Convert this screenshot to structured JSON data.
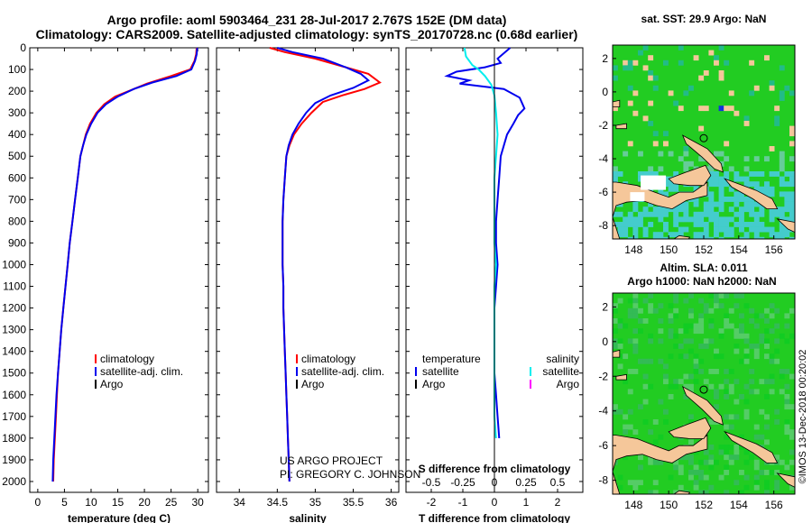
{
  "header": {
    "title_line1": "Argo profile: aoml 5903464_231 28-Jul-2017 2.767S 152E (DM data)",
    "title_line2": "Climatology: CARS2009. Satellite-adjusted climatology: synTS_20170728.nc (0.68d earlier)"
  },
  "colors": {
    "climatology": "#ff0000",
    "satellite": "#0000ee",
    "argo": "#000000",
    "sal_satellite": "#00eeee",
    "sal_argo": "#ff00ff",
    "land": "#f5c79a",
    "ocean_warm": "#22cc22",
    "ocean_cool": "#44cccc"
  },
  "credits": {
    "project": "US ARGO PROJECT",
    "pi": "PI: GREGORY C. JOHNSON",
    "stamp": "©IMOS 13-Dec-2018 00:20:02"
  },
  "chart_data": [
    {
      "type": "line",
      "name": "temperature-profile",
      "xlabel": "temperature (deg C)",
      "ylabel": "",
      "xlim": [
        -1.5,
        32
      ],
      "ylim": [
        2050,
        0
      ],
      "xticks": [
        0,
        5,
        10,
        15,
        20,
        25,
        30
      ],
      "yticks": [
        0,
        100,
        200,
        300,
        400,
        500,
        600,
        700,
        800,
        900,
        1000,
        1100,
        1200,
        1300,
        1400,
        1500,
        1600,
        1700,
        1800,
        1900,
        2000
      ],
      "legend": [
        "climatology",
        "satellite-adj. clim.",
        "Argo"
      ],
      "series": [
        {
          "name": "climatology",
          "color": "#ff0000",
          "points": [
            [
              29.8,
              0
            ],
            [
              29.7,
              30
            ],
            [
              29.4,
              60
            ],
            [
              28.6,
              100
            ],
            [
              25,
              130
            ],
            [
              20.5,
              165
            ],
            [
              17.5,
              195
            ],
            [
              14.5,
              225
            ],
            [
              12.5,
              260
            ],
            [
              11,
              300
            ],
            [
              9.8,
              350
            ],
            [
              9,
              400
            ],
            [
              8.5,
              450
            ],
            [
              8,
              500
            ],
            [
              7.5,
              600
            ],
            [
              7,
              700
            ],
            [
              6.5,
              800
            ],
            [
              6,
              900
            ],
            [
              5.6,
              1000
            ],
            [
              5.2,
              1100
            ],
            [
              4.8,
              1200
            ],
            [
              4.4,
              1300
            ],
            [
              4.1,
              1400
            ],
            [
              3.8,
              1500
            ],
            [
              3.6,
              1600
            ],
            [
              3.4,
              1700
            ],
            [
              3.2,
              1800
            ],
            [
              3.0,
              1900
            ],
            [
              2.9,
              2000
            ]
          ]
        },
        {
          "name": "satellite-adj. clim.",
          "color": "#0000ee",
          "points": [
            [
              29.9,
              0
            ],
            [
              29.8,
              30
            ],
            [
              29.5,
              60
            ],
            [
              28.8,
              100
            ],
            [
              26,
              130
            ],
            [
              21.5,
              160
            ],
            [
              18,
              190
            ],
            [
              15,
              225
            ],
            [
              12.8,
              260
            ],
            [
              11.2,
              300
            ],
            [
              10,
              350
            ],
            [
              9.1,
              400
            ],
            [
              8.5,
              450
            ],
            [
              8,
              500
            ],
            [
              7.5,
              600
            ],
            [
              7,
              700
            ],
            [
              6.5,
              800
            ],
            [
              6,
              900
            ],
            [
              5.6,
              1000
            ],
            [
              5.2,
              1100
            ],
            [
              4.8,
              1200
            ],
            [
              4.4,
              1300
            ],
            [
              4.1,
              1400
            ],
            [
              3.8,
              1500
            ],
            [
              3.5,
              1600
            ],
            [
              3.3,
              1700
            ],
            [
              3.1,
              1800
            ],
            [
              2.9,
              1900
            ],
            [
              2.8,
              2000
            ]
          ]
        }
      ]
    },
    {
      "type": "line",
      "name": "salinity-profile",
      "xlabel": "salinity",
      "ylabel": "",
      "xlim": [
        33.7,
        36.1
      ],
      "ylim": [
        2050,
        0
      ],
      "xticks": [
        34,
        34.5,
        35,
        35.5,
        36
      ],
      "xticklabels": [
        "34",
        "34.5",
        "35",
        "35.5",
        "36"
      ],
      "legend": [
        "climatology",
        "satellite-adj. clim.",
        "Argo"
      ],
      "series": [
        {
          "name": "climatology",
          "color": "#ff0000",
          "points": [
            [
              34.4,
              0
            ],
            [
              34.6,
              20
            ],
            [
              35.0,
              50
            ],
            [
              35.4,
              90
            ],
            [
              35.7,
              120
            ],
            [
              35.85,
              160
            ],
            [
              35.65,
              190
            ],
            [
              35.35,
              220
            ],
            [
              35.1,
              250
            ],
            [
              34.95,
              300
            ],
            [
              34.82,
              350
            ],
            [
              34.72,
              400
            ],
            [
              34.66,
              450
            ],
            [
              34.62,
              500
            ],
            [
              34.6,
              600
            ],
            [
              34.58,
              700
            ],
            [
              34.57,
              800
            ],
            [
              34.57,
              900
            ],
            [
              34.57,
              1000
            ],
            [
              34.58,
              1100
            ],
            [
              34.58,
              1200
            ],
            [
              34.59,
              1300
            ],
            [
              34.6,
              1400
            ],
            [
              34.61,
              1500
            ],
            [
              34.62,
              1600
            ],
            [
              34.63,
              1700
            ],
            [
              34.64,
              1800
            ],
            [
              34.65,
              1900
            ],
            [
              34.66,
              2000
            ]
          ]
        },
        {
          "name": "satellite-adj. clim.",
          "color": "#0000ee",
          "points": [
            [
              34.5,
              0
            ],
            [
              34.7,
              20
            ],
            [
              35.1,
              50
            ],
            [
              35.4,
              90
            ],
            [
              35.6,
              120
            ],
            [
              35.7,
              150
            ],
            [
              35.5,
              185
            ],
            [
              35.2,
              220
            ],
            [
              35.0,
              255
            ],
            [
              34.88,
              300
            ],
            [
              34.78,
              350
            ],
            [
              34.7,
              400
            ],
            [
              34.65,
              450
            ],
            [
              34.62,
              500
            ],
            [
              34.6,
              600
            ],
            [
              34.58,
              700
            ],
            [
              34.57,
              800
            ],
            [
              34.57,
              900
            ],
            [
              34.57,
              1000
            ],
            [
              34.58,
              1100
            ],
            [
              34.58,
              1200
            ],
            [
              34.59,
              1300
            ],
            [
              34.6,
              1400
            ],
            [
              34.61,
              1500
            ],
            [
              34.62,
              1600
            ],
            [
              34.63,
              1700
            ],
            [
              34.64,
              1800
            ],
            [
              34.65,
              1900
            ],
            [
              34.66,
              2000
            ]
          ]
        }
      ]
    },
    {
      "type": "line",
      "name": "difference-profile",
      "xlabel": "T difference from climatology",
      "x2label": "S difference from climatology",
      "xlim": [
        -2.8,
        2.8
      ],
      "ylim": [
        2050,
        0
      ],
      "xticks": [
        -2,
        -1,
        0,
        1,
        2
      ],
      "x2ticks": [
        -0.5,
        -0.25,
        0,
        0.25,
        0.5
      ],
      "x2ticklabels": [
        "-0.5",
        "-0.25",
        "0",
        "0.25",
        "0.5"
      ],
      "legend_temperature": [
        "temperature",
        "satellite",
        "Argo"
      ],
      "legend_salinity": [
        "salinity",
        "satellite",
        "Argo"
      ],
      "series": [
        {
          "name": "T satellite",
          "color": "#0000ee",
          "points": [
            [
              0.5,
              0
            ],
            [
              0.1,
              50
            ],
            [
              0.2,
              70
            ],
            [
              -0.3,
              90
            ],
            [
              -1.2,
              110
            ],
            [
              -1.5,
              130
            ],
            [
              -0.8,
              150
            ],
            [
              -1.1,
              165
            ],
            [
              0.3,
              190
            ],
            [
              0.8,
              230
            ],
            [
              0.95,
              280
            ],
            [
              0.75,
              310
            ],
            [
              0.6,
              350
            ],
            [
              0.4,
              400
            ],
            [
              0.3,
              450
            ],
            [
              0.2,
              500
            ],
            [
              0.15,
              600
            ],
            [
              0.1,
              700
            ],
            [
              0.05,
              800
            ],
            [
              0.05,
              900
            ],
            [
              0.1,
              1000
            ],
            [
              0.05,
              1100
            ],
            [
              0,
              1200
            ],
            [
              0,
              1300
            ],
            [
              0,
              1400
            ],
            [
              0,
              1500
            ],
            [
              0.05,
              1600
            ],
            [
              0.1,
              1700
            ],
            [
              0.15,
              1800
            ]
          ]
        },
        {
          "name": "S satellite",
          "color": "#00eeee",
          "points": [
            [
              -0.95,
              0
            ],
            [
              -0.9,
              40
            ],
            [
              -0.7,
              80
            ],
            [
              -0.5,
              100
            ],
            [
              -0.3,
              130
            ],
            [
              -0.1,
              170
            ],
            [
              0,
              220
            ],
            [
              0.05,
              300
            ],
            [
              0.1,
              400
            ],
            [
              0.05,
              500
            ],
            [
              0,
              600
            ],
            [
              0,
              700
            ],
            [
              0,
              800
            ],
            [
              0,
              900
            ],
            [
              0.05,
              1000
            ],
            [
              0,
              1100
            ],
            [
              0,
              1200
            ],
            [
              0,
              1300
            ],
            [
              0,
              1400
            ],
            [
              0,
              1500
            ],
            [
              0,
              1600
            ],
            [
              0,
              1700
            ],
            [
              0.05,
              1800
            ]
          ]
        }
      ]
    },
    {
      "type": "heatmap",
      "name": "sst-map",
      "title": "sat. SST: 29.9 Argo: NaN",
      "xlim": [
        146.8,
        157.2
      ],
      "ylim": [
        -8.8,
        2.8
      ],
      "xticks": [
        148,
        150,
        152,
        154,
        156
      ],
      "yticks": [
        2,
        0,
        -2,
        -4,
        -6,
        -8
      ],
      "float_marker": [
        152,
        -2.77
      ]
    },
    {
      "type": "heatmap",
      "name": "sla-map",
      "title_line1": "Altim. SLA: 0.011",
      "title_line2": "Argo h1000: NaN h2000: NaN",
      "xlim": [
        146.8,
        157.2
      ],
      "ylim": [
        -8.8,
        2.8
      ],
      "xticks": [
        148,
        150,
        152,
        154,
        156
      ],
      "yticks": [
        2,
        0,
        -2,
        -4,
        -6,
        -8
      ],
      "float_marker": [
        152,
        -2.77
      ]
    }
  ]
}
